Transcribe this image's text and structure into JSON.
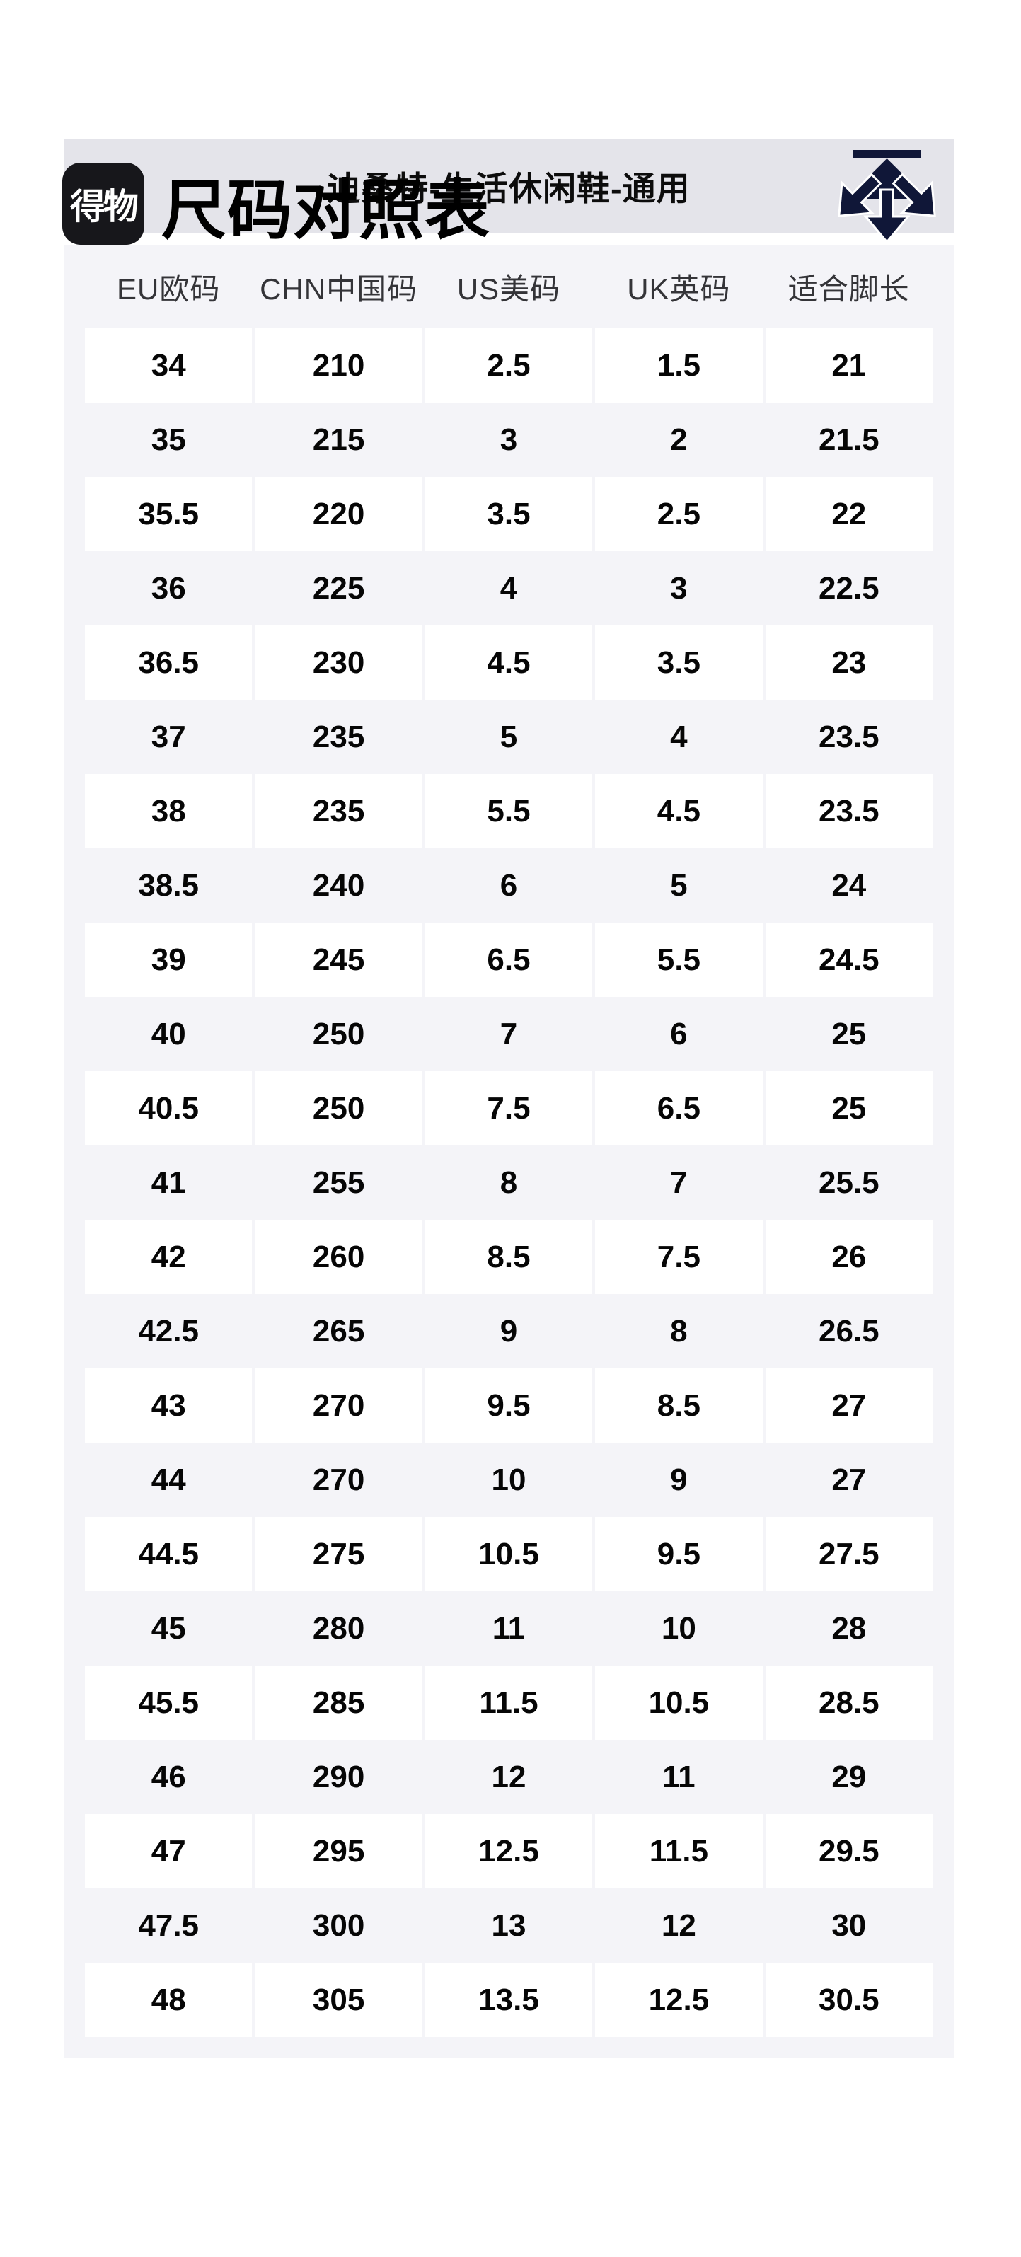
{
  "page": {
    "brand_logo_text": "得物",
    "title": "尺码对照表",
    "subtitle": "迪桑特-生活休闲鞋-通用"
  },
  "colors": {
    "descente_navy": "#101738",
    "logo_black": "#17171b",
    "subtitle_bar_gray": "#e4e4ea",
    "card_gray": "#f4f4f8",
    "cell_white": "#ffffff"
  },
  "table": {
    "headers": [
      "EU欧码",
      "CHN中国码",
      "US美码",
      "UK英码",
      "适合脚长"
    ],
    "rows": [
      [
        "34",
        "210",
        "2.5",
        "1.5",
        "21"
      ],
      [
        "35",
        "215",
        "3",
        "2",
        "21.5"
      ],
      [
        "35.5",
        "220",
        "3.5",
        "2.5",
        "22"
      ],
      [
        "36",
        "225",
        "4",
        "3",
        "22.5"
      ],
      [
        "36.5",
        "230",
        "4.5",
        "3.5",
        "23"
      ],
      [
        "37",
        "235",
        "5",
        "4",
        "23.5"
      ],
      [
        "38",
        "235",
        "5.5",
        "4.5",
        "23.5"
      ],
      [
        "38.5",
        "240",
        "6",
        "5",
        "24"
      ],
      [
        "39",
        "245",
        "6.5",
        "5.5",
        "24.5"
      ],
      [
        "40",
        "250",
        "7",
        "6",
        "25"
      ],
      [
        "40.5",
        "250",
        "7.5",
        "6.5",
        "25"
      ],
      [
        "41",
        "255",
        "8",
        "7",
        "25.5"
      ],
      [
        "42",
        "260",
        "8.5",
        "7.5",
        "26"
      ],
      [
        "42.5",
        "265",
        "9",
        "8",
        "26.5"
      ],
      [
        "43",
        "270",
        "9.5",
        "8.5",
        "27"
      ],
      [
        "44",
        "270",
        "10",
        "9",
        "27"
      ],
      [
        "44.5",
        "275",
        "10.5",
        "9.5",
        "27.5"
      ],
      [
        "45",
        "280",
        "11",
        "10",
        "28"
      ],
      [
        "45.5",
        "285",
        "11.5",
        "10.5",
        "28.5"
      ],
      [
        "46",
        "290",
        "12",
        "11",
        "29"
      ],
      [
        "47",
        "295",
        "12.5",
        "11.5",
        "29.5"
      ],
      [
        "47.5",
        "300",
        "13",
        "12",
        "30"
      ],
      [
        "48",
        "305",
        "13.5",
        "12.5",
        "30.5"
      ]
    ]
  }
}
